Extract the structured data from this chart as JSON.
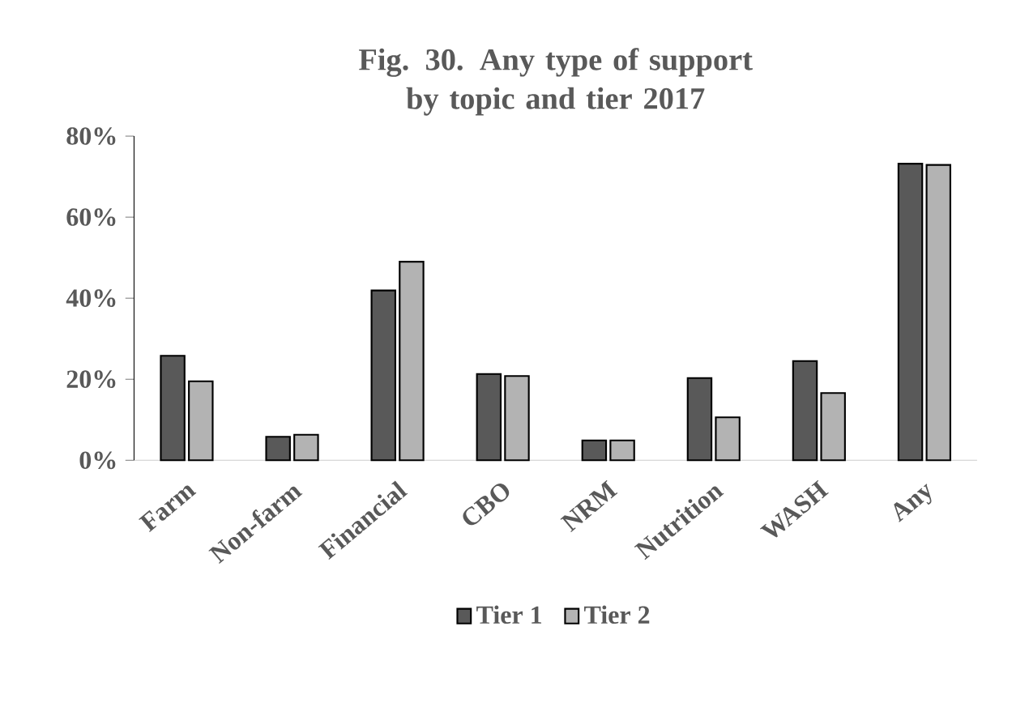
{
  "chart_data": {
    "type": "bar",
    "title": "Fig. 30. Any type of support by topic and tier 2017",
    "categories": [
      "Farm",
      "Non-farm",
      "Financial",
      "CBO",
      "NRM",
      "Nutrition",
      "WASH",
      "Any"
    ],
    "series": [
      {
        "name": "Tier 1",
        "color": "#595959",
        "values": [
          25.8,
          5.8,
          41.9,
          21.3,
          4.9,
          20.3,
          24.5,
          73.2
        ]
      },
      {
        "name": "Tier 2",
        "color": "#b3b3b3",
        "values": [
          19.5,
          6.3,
          49.0,
          20.8,
          4.9,
          10.6,
          16.6,
          72.9
        ]
      }
    ],
    "ylim": [
      0,
      80
    ],
    "yticks": [
      {
        "value": 0,
        "label": "0%"
      },
      {
        "value": 20,
        "label": "20%"
      },
      {
        "value": 40,
        "label": "40%"
      },
      {
        "value": 60,
        "label": "60%"
      },
      {
        "value": 80,
        "label": "80%"
      }
    ],
    "grid": false,
    "legend": "bottom"
  }
}
